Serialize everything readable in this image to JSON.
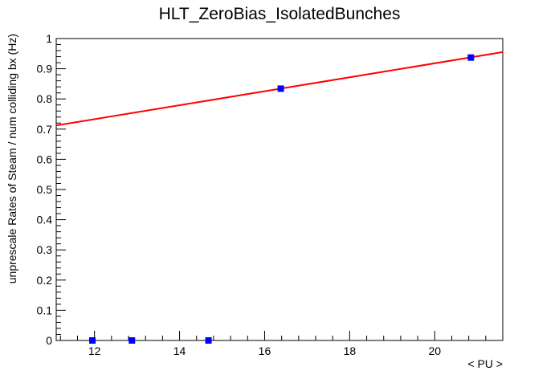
{
  "chart_data": {
    "type": "scatter",
    "title": "HLT_ZeroBias_IsolatedBunches",
    "xlabel": "< PU >",
    "ylabel": "unprescale Rates of Steam / num colliding bx (Hz)",
    "xlim": [
      11.1,
      21.6
    ],
    "ylim": [
      0,
      1
    ],
    "xticks": [
      12,
      14,
      16,
      18,
      20
    ],
    "yticks": [
      0,
      0.1,
      0.2,
      0.3,
      0.4,
      0.5,
      0.6,
      0.7,
      0.8,
      0.9,
      1
    ],
    "grid": false,
    "series": [
      {
        "type": "scatter",
        "color": "#0000ff",
        "marker": "square",
        "points": [
          {
            "x": 11.95,
            "y": 0.0
          },
          {
            "x": 12.88,
            "y": 0.0
          },
          {
            "x": 14.68,
            "y": 0.0
          },
          {
            "x": 16.38,
            "y": 0.834
          },
          {
            "x": 20.85,
            "y": 0.937
          }
        ]
      },
      {
        "type": "line",
        "color": "#ff0000",
        "points": [
          {
            "x": 11.1,
            "y": 0.712
          },
          {
            "x": 21.6,
            "y": 0.955
          }
        ]
      }
    ]
  }
}
